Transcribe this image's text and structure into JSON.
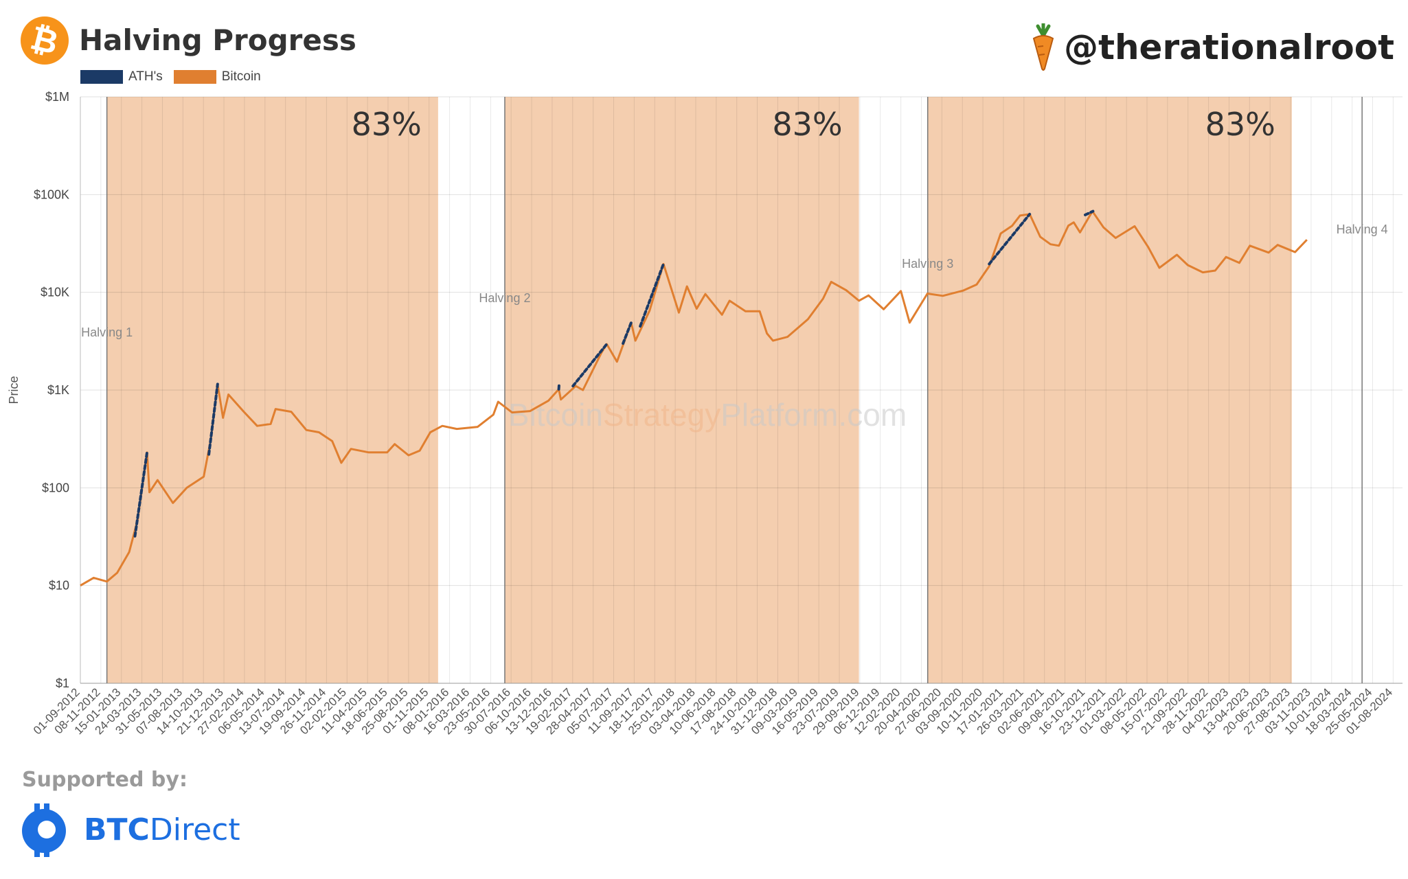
{
  "header": {
    "title": "Halving Progress",
    "handle": "@therationalroot",
    "btc_logo_icon": "bitcoin-logo-icon",
    "handle_icon": "carrot-icon"
  },
  "legend": [
    {
      "label": "ATH's",
      "color": "#1b3a66"
    },
    {
      "label": "Bitcoin",
      "color": "#e07f30"
    }
  ],
  "watermark": {
    "part1": "Bitcoin",
    "part2": "Strategy",
    "part3": "Platform.com"
  },
  "footer": {
    "supported_label": "Supported by:",
    "sponsor_bold": "BTC",
    "sponsor_light": "Direct",
    "sponsor_icon": "btcdirect-logo-icon"
  },
  "chart_data": {
    "type": "line",
    "ylabel": "Price",
    "yscale": "log",
    "ylim": [
      1,
      1000000
    ],
    "y_ticks": [
      "$1",
      "$10",
      "$100",
      "$1K",
      "$10K",
      "$100K",
      "$1M"
    ],
    "xlim": [
      "2012-09-01",
      "2024-09-01"
    ],
    "x_ticks": [
      "01-09-2012",
      "08-11-2012",
      "15-01-2013",
      "24-03-2013",
      "31-05-2013",
      "07-08-2013",
      "14-10-2013",
      "21-12-2013",
      "27-02-2014",
      "06-05-2014",
      "13-07-2014",
      "19-09-2014",
      "26-11-2014",
      "02-02-2015",
      "11-04-2015",
      "18-06-2015",
      "25-08-2015",
      "01-11-2015",
      "08-01-2016",
      "16-03-2016",
      "23-05-2016",
      "30-07-2016",
      "06-10-2016",
      "13-12-2016",
      "19-02-2017",
      "28-04-2017",
      "05-07-2017",
      "11-09-2017",
      "18-11-2017",
      "25-01-2018",
      "03-04-2018",
      "10-06-2018",
      "17-08-2018",
      "24-10-2018",
      "31-12-2018",
      "09-03-2019",
      "16-05-2019",
      "23-07-2019",
      "29-09-2019",
      "06-12-2019",
      "12-02-2020",
      "20-04-2020",
      "27-06-2020",
      "03-09-2020",
      "10-11-2020",
      "17-01-2021",
      "26-03-2021",
      "02-06-2021",
      "09-08-2021",
      "16-10-2021",
      "23-12-2021",
      "01-03-2022",
      "08-05-2022",
      "15-07-2022",
      "21-09-2022",
      "28-11-2022",
      "04-02-2023",
      "13-04-2023",
      "20-06-2023",
      "27-08-2023",
      "03-11-2023",
      "10-01-2024",
      "18-03-2024",
      "25-05-2024",
      "01-08-2024"
    ],
    "series": [
      {
        "name": "Bitcoin",
        "color": "#e07f30",
        "x": [
          "2012-09-01",
          "2012-10-15",
          "2012-11-28",
          "2013-01-01",
          "2013-02-10",
          "2013-03-10",
          "2013-04-10",
          "2013-04-18",
          "2013-05-15",
          "2013-07-05",
          "2013-08-20",
          "2013-10-15",
          "2013-11-08",
          "2013-11-30",
          "2013-12-18",
          "2014-01-05",
          "2014-02-25",
          "2014-04-10",
          "2014-05-25",
          "2014-06-10",
          "2014-08-01",
          "2014-09-20",
          "2014-11-01",
          "2014-12-15",
          "2015-01-14",
          "2015-02-15",
          "2015-04-15",
          "2015-06-15",
          "2015-07-10",
          "2015-08-25",
          "2015-10-01",
          "2015-11-05",
          "2015-12-15",
          "2016-02-01",
          "2016-04-10",
          "2016-06-01",
          "2016-06-17",
          "2016-08-02",
          "2016-10-01",
          "2016-12-01",
          "2017-01-04",
          "2017-01-11",
          "2017-03-01",
          "2017-03-25",
          "2017-05-25",
          "2017-06-12",
          "2017-07-16",
          "2017-09-01",
          "2017-09-15",
          "2017-11-01",
          "2017-12-17",
          "2018-02-06",
          "2018-03-05",
          "2018-04-06",
          "2018-05-05",
          "2018-06-29",
          "2018-07-24",
          "2018-09-15",
          "2018-11-01",
          "2018-11-25",
          "2018-12-15",
          "2019-02-01",
          "2019-04-10",
          "2019-05-30",
          "2019-06-26",
          "2019-08-15",
          "2019-09-26",
          "2019-10-28",
          "2019-12-17",
          "2020-02-12",
          "2020-03-12",
          "2020-05-10",
          "2020-06-30",
          "2020-09-05",
          "2020-10-20",
          "2020-12-01",
          "2021-01-08",
          "2021-02-15",
          "2021-03-13",
          "2021-04-14",
          "2021-05-19",
          "2021-06-22",
          "2021-07-20",
          "2021-08-20",
          "2021-09-07",
          "2021-09-28",
          "2021-11-08",
          "2021-12-15",
          "2022-01-24",
          "2022-03-28",
          "2022-05-12",
          "2022-06-18",
          "2022-08-15",
          "2022-09-20",
          "2022-11-09",
          "2022-12-20",
          "2023-01-25",
          "2023-03-10",
          "2023-04-14",
          "2023-06-15",
          "2023-07-15",
          "2023-09-11",
          "2023-10-20"
        ],
        "y": [
          10,
          12,
          11,
          13.5,
          22,
          47,
          230,
          90,
          120,
          70,
          100,
          130,
          320,
          1150,
          520,
          900,
          600,
          430,
          450,
          640,
          600,
          390,
          370,
          300,
          180,
          250,
          230,
          230,
          280,
          215,
          240,
          370,
          430,
          400,
          420,
          560,
          760,
          590,
          610,
          780,
          1020,
          800,
          1100,
          1000,
          2400,
          2950,
          1950,
          4900,
          3200,
          6500,
          19500,
          6200,
          11500,
          6800,
          9600,
          5900,
          8200,
          6400,
          6400,
          3800,
          3200,
          3500,
          5300,
          8600,
          12800,
          10500,
          8200,
          9300,
          6700,
          10300,
          4900,
          9700,
          9200,
          10400,
          12000,
          18500,
          40000,
          48000,
          61000,
          63000,
          37000,
          31000,
          30000,
          48000,
          52000,
          41000,
          67500,
          46000,
          36000,
          47500,
          29000,
          17800,
          24200,
          19000,
          16000,
          16700,
          23000,
          20000,
          30000,
          25500,
          30500,
          25800,
          34500
        ]
      },
      {
        "name": "ATH's",
        "color": "#1b3a66",
        "segments": [
          {
            "x": [
              "2013-03-01",
              "2013-04-10"
            ],
            "y": [
              32,
              230
            ]
          },
          {
            "x": [
              "2013-11-01",
              "2013-11-30"
            ],
            "y": [
              220,
              1150
            ]
          },
          {
            "x": [
              "2017-01-04",
              "2017-01-05"
            ],
            "y": [
              1020,
              1130
            ]
          },
          {
            "x": [
              "2017-02-20",
              "2017-06-12"
            ],
            "y": [
              1100,
              2950
            ]
          },
          {
            "x": [
              "2017-08-05",
              "2017-09-01"
            ],
            "y": [
              3000,
              4900
            ]
          },
          {
            "x": [
              "2017-10-01",
              "2017-12-17"
            ],
            "y": [
              4500,
              19500
            ]
          },
          {
            "x": [
              "2020-12-01",
              "2021-04-14"
            ],
            "y": [
              19500,
              63000
            ]
          },
          {
            "x": [
              "2021-10-15",
              "2021-11-10"
            ],
            "y": [
              62000,
              67500
            ]
          }
        ]
      }
    ],
    "halvings": [
      {
        "label": "Halving 1",
        "date": "2012-11-28"
      },
      {
        "label": "Halving 2",
        "date": "2016-07-09"
      },
      {
        "label": "Halving 3",
        "date": "2020-05-11"
      },
      {
        "label": "Halving 4",
        "date": "2024-04-20"
      }
    ],
    "shaded_regions": [
      {
        "start": "2012-11-28",
        "end": "2015-12-01",
        "label": "83%"
      },
      {
        "start": "2016-07-09",
        "end": "2019-09-26",
        "label": "83%"
      },
      {
        "start": "2020-05-11",
        "end": "2023-08-31",
        "label": "83%"
      }
    ],
    "grid": true
  }
}
